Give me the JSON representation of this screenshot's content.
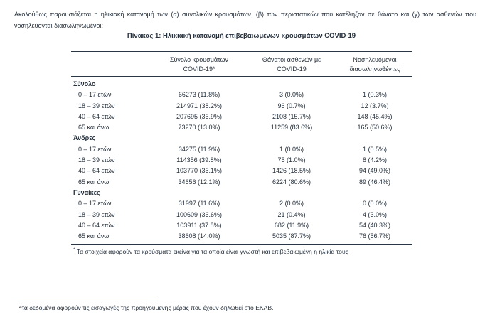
{
  "intro": "Ακολούθως παρουσιάζεται η ηλικιακή κατανομή των (α) συνολικών κρουσμάτων, (β) των περιστατικών που κατέληξαν σε θάνατο και (γ) των ασθενών που νοσηλεύονται διασωληνωμένοι:",
  "table": {
    "title": "Πίνακας 1: Ηλικιακή κατανομή επιβεβαιωμένων κρουσμάτων COVID-19",
    "columns": [
      {
        "line1": "Σύνολο κρουσμάτων",
        "line2": "COVID-19*"
      },
      {
        "line1": "Θάνατοι ασθενών με",
        "line2": "COVID-19"
      },
      {
        "line1": "Νοσηλευόμενοι",
        "line2": "διασωληνωθέντες"
      }
    ],
    "sections": [
      {
        "label": "Σύνολο",
        "rows": [
          {
            "age": "0 – 17 ετών",
            "cases": "66273 (11.8%)",
            "deaths": "3 (0.0%)",
            "intubated": "1 (0.3%)"
          },
          {
            "age": "18 – 39 ετών",
            "cases": "214971 (38.2%)",
            "deaths": "96 (0.7%)",
            "intubated": "12 (3.7%)"
          },
          {
            "age": "40 – 64 ετών",
            "cases": "207695 (36.9%)",
            "deaths": "2108 (15.7%)",
            "intubated": "148 (45.4%)"
          },
          {
            "age": "65 και άνω",
            "cases": "73270 (13.0%)",
            "deaths": "11259 (83.6%)",
            "intubated": "165 (50.6%)"
          }
        ]
      },
      {
        "label": "Άνδρες",
        "rows": [
          {
            "age": "0 – 17 ετών",
            "cases": "34275 (11.9%)",
            "deaths": "1 (0.0%)",
            "intubated": "1 (0.5%)"
          },
          {
            "age": "18 – 39 ετών",
            "cases": "114356 (39.8%)",
            "deaths": "75 (1.0%)",
            "intubated": "8 (4.2%)"
          },
          {
            "age": "40 – 64 ετών",
            "cases": "103770 (36.1%)",
            "deaths": "1426 (18.5%)",
            "intubated": "94 (49.0%)"
          },
          {
            "age": "65 και άνω",
            "cases": "34656 (12.1%)",
            "deaths": "6224 (80.6%)",
            "intubated": "89 (46.4%)"
          }
        ]
      },
      {
        "label": "Γυναίκες",
        "rows": [
          {
            "age": "0 – 17 ετών",
            "cases": "31997 (11.6%)",
            "deaths": "2 (0.0%)",
            "intubated": "0 (0.0%)"
          },
          {
            "age": "18 – 39 ετών",
            "cases": "100609 (36.6%)",
            "deaths": "21 (0.4%)",
            "intubated": "4 (3.0%)"
          },
          {
            "age": "40 – 64 ετών",
            "cases": "103911 (37.8%)",
            "deaths": "682 (11.9%)",
            "intubated": "54 (40.3%)"
          },
          {
            "age": "65 και άνω",
            "cases": "38608 (14.0%)",
            "deaths": "5035 (87.7%)",
            "intubated": "76 (56.7%)"
          }
        ]
      }
    ],
    "footnote_symbol": "*",
    "footnote": "Τα στοιχεία αφορούν τα κρούσματα εκείνα για τα οποία είναι γνωστή και επιβεβαιωμένη η ηλικία τους"
  },
  "footer": {
    "note_symbol": "4",
    "note": "τα δεδομένα αφορούν τις εισαγωγές της προηγούμενης μέρας που έχουν δηλωθεί στο ΕΚΑΒ."
  },
  "colors": {
    "text": "#25303d",
    "rule": "#2b3644",
    "background": "#ffffff"
  }
}
